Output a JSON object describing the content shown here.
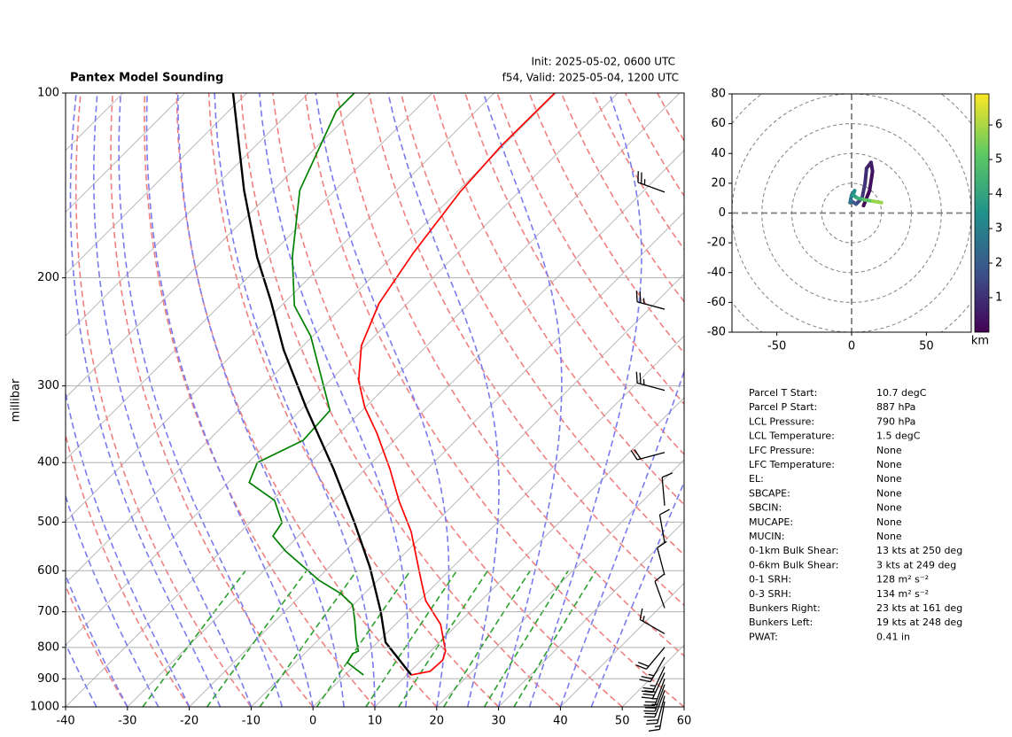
{
  "chart_data": [
    {
      "type": "skewt",
      "title": "Pantex Model Sounding",
      "subtitle_lines": [
        "Init: 2025-05-02, 0600 UTC",
        "f54, Valid: 2025-05-04, 1200 UTC"
      ],
      "ylabel": "millibar",
      "xlim": [
        -40,
        60
      ],
      "ylim": [
        1000,
        100
      ],
      "xticks": [
        -40,
        -30,
        -20,
        -10,
        0,
        10,
        20,
        30,
        40,
        50,
        60
      ],
      "yticks": [
        100,
        200,
        300,
        400,
        500,
        600,
        700,
        800,
        900,
        1000
      ],
      "log_y": true,
      "grid": true,
      "series": [
        {
          "color": "#ff0000",
          "pressure": [
            887,
            875,
            839,
            811,
            734,
            671,
            622,
            518,
            461,
            410,
            359,
            325,
            294,
            258,
            220,
            182,
            145,
            122,
            100
          ],
          "values": [
            10.7,
            13.2,
            13.4,
            12.4,
            7.3,
            1.0,
            -3.0,
            -12.5,
            -19.5,
            -26.0,
            -33.8,
            -40.1,
            -45.4,
            -50.6,
            -54.6,
            -57.2,
            -59.5,
            -60.3,
            -60.2
          ]
        },
        {
          "color": "#008000",
          "pressure": [
            887,
            847,
            819,
            811,
            772,
            722,
            682,
            654,
            622,
            557,
            527,
            501,
            461,
            431,
            400,
            368,
            329,
            249,
            222,
            185,
            144,
            107,
            100
          ],
          "values": [
            3.0,
            -1.6,
            -2.2,
            -1.7,
            -4.2,
            -7.3,
            -10.1,
            -13.8,
            -19.5,
            -29.7,
            -34.1,
            -34.8,
            -39.6,
            -46.6,
            -48.5,
            -44.7,
            -45.2,
            -60.3,
            -67.9,
            -76.1,
            -85.7,
            -92.6,
            -92.6
          ]
        },
        {
          "color": "#000000",
          "pressure": [
            887,
            785,
            699,
            592,
            501,
            410,
            325,
            262,
            218,
            185,
            144,
            100
          ],
          "values": [
            10.7,
            1.3,
            -4.5,
            -13.4,
            -23.1,
            -35.1,
            -49.6,
            -62.5,
            -72.5,
            -81.8,
            -94.7,
            -112.2
          ]
        }
      ],
      "barbs": {
        "color": "#000000",
        "pressure": [
          145,
          225,
          305,
          385,
          470,
          540,
          610,
          690,
          760,
          800,
          830,
          860,
          880,
          900,
          920,
          940,
          960,
          980
        ],
        "speed": [
          25,
          25,
          25,
          20,
          10,
          10,
          10,
          10,
          15,
          20,
          25,
          25,
          30,
          25,
          25,
          20,
          20,
          15
        ],
        "direction": [
          290,
          285,
          285,
          255,
          355,
          350,
          345,
          340,
          300,
          220,
          210,
          205,
          205,
          200,
          200,
          200,
          195,
          190
        ]
      }
    },
    {
      "type": "hodograph",
      "xlim": [
        -80,
        80
      ],
      "ylim": [
        -80,
        80
      ],
      "xticks": [
        -50,
        0,
        50
      ],
      "yticks": [
        -80,
        -60,
        -40,
        -20,
        0,
        20,
        40,
        60,
        80
      ],
      "u": [
        8,
        12,
        14,
        13,
        10,
        9,
        7,
        3,
        0,
        -1,
        0,
        2,
        1,
        4,
        8,
        14,
        20
      ],
      "v": [
        5,
        15,
        28,
        34,
        30,
        20,
        10,
        6,
        8,
        7,
        12,
        15,
        12,
        10,
        9,
        8,
        7
      ],
      "heights": [
        0.1,
        0.3,
        0.5,
        0.7,
        0.9,
        1.1,
        1.4,
        1.8,
        2.2,
        2.6,
        3.0,
        3.4,
        3.8,
        4.3,
        5.0,
        5.8,
        6.5
      ],
      "clim": [
        0,
        6.9
      ],
      "cticks": [
        1,
        2,
        3,
        4,
        5,
        6
      ],
      "clabel": "km"
    }
  ],
  "parameters": {
    "rows": [
      [
        "Parcel T Start:",
        "10.7 degC"
      ],
      [
        "Parcel P Start:",
        "887 hPa"
      ],
      [
        "LCL Pressure:",
        "790 hPa"
      ],
      [
        "LCL Temperature:",
        "1.5 degC"
      ],
      [
        "LFC Pressure:",
        "None"
      ],
      [
        "LFC Temperature:",
        "None"
      ],
      [
        "EL:",
        "None"
      ],
      [
        "SBCAPE:",
        "None"
      ],
      [
        "SBCIN:",
        "None"
      ],
      [
        "MUCAPE:",
        "None"
      ],
      [
        "MUCIN:",
        "None"
      ],
      [
        "0-1km Bulk Shear:",
        "13 kts at 250 deg"
      ],
      [
        "0-6km Bulk Shear:",
        "3 kts at 249 deg"
      ],
      [
        "0-1 SRH:",
        "128 m² s⁻²"
      ],
      [
        "0-3 SRH:",
        "134 m² s⁻²"
      ],
      [
        "Bunkers Right:",
        "23 kts at 161 deg"
      ],
      [
        "Bunkers Left:",
        "19 kts at 248 deg"
      ],
      [
        "PWAT:",
        "0.41 in"
      ]
    ]
  }
}
